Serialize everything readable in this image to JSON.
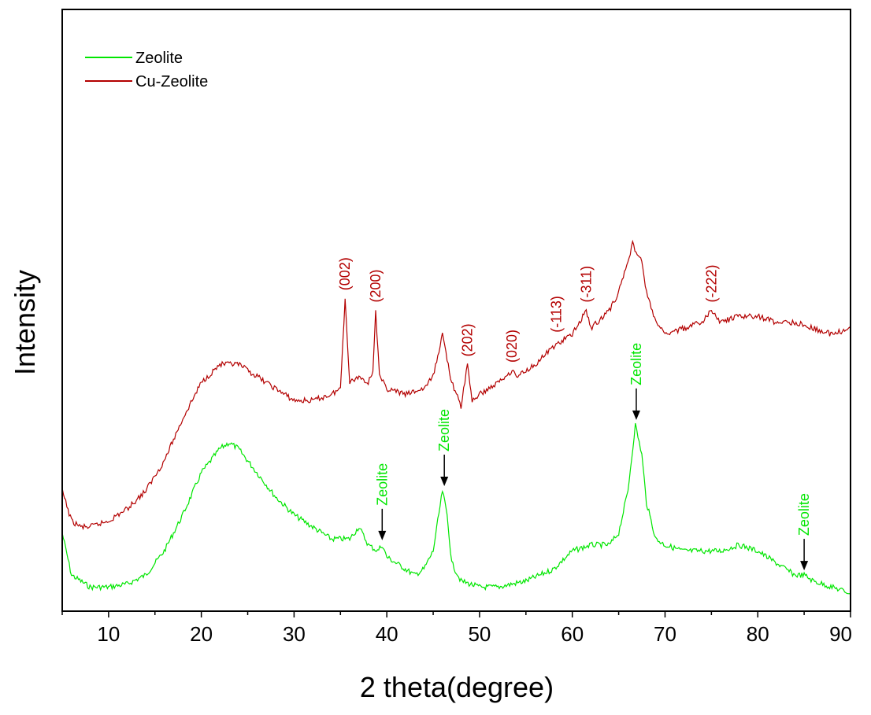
{
  "chart_data": {
    "type": "line",
    "xlabel": "2 theta(degree)",
    "ylabel": "Intensity",
    "xlim": [
      5,
      90
    ],
    "ylim": [
      0,
      1
    ],
    "x_ticks": [
      "10",
      "20",
      "30",
      "40",
      "50",
      "60",
      "70",
      "80",
      "90"
    ],
    "y_ticks_shown": false,
    "grid": false,
    "legend_position": "top-left",
    "series": [
      {
        "name": "Zeolite",
        "color": "#00e600",
        "points": [
          [
            5,
            0.13
          ],
          [
            6,
            0.06
          ],
          [
            7,
            0.05
          ],
          [
            8,
            0.04
          ],
          [
            10,
            0.04
          ],
          [
            12,
            0.045
          ],
          [
            14,
            0.06
          ],
          [
            16,
            0.1
          ],
          [
            18,
            0.16
          ],
          [
            20,
            0.23
          ],
          [
            22,
            0.27
          ],
          [
            23,
            0.28
          ],
          [
            24,
            0.27
          ],
          [
            26,
            0.23
          ],
          [
            28,
            0.19
          ],
          [
            30,
            0.16
          ],
          [
            32,
            0.14
          ],
          [
            34,
            0.12
          ],
          [
            36,
            0.12
          ],
          [
            37,
            0.14
          ],
          [
            38,
            0.11
          ],
          [
            39,
            0.1
          ],
          [
            39.5,
            0.11
          ],
          [
            40,
            0.09
          ],
          [
            42,
            0.07
          ],
          [
            43,
            0.06
          ],
          [
            44,
            0.07
          ],
          [
            45,
            0.1
          ],
          [
            46,
            0.2
          ],
          [
            46.5,
            0.16
          ],
          [
            47,
            0.08
          ],
          [
            48,
            0.05
          ],
          [
            50,
            0.04
          ],
          [
            52,
            0.04
          ],
          [
            55,
            0.05
          ],
          [
            58,
            0.07
          ],
          [
            60,
            0.1
          ],
          [
            62,
            0.11
          ],
          [
            64,
            0.11
          ],
          [
            65,
            0.13
          ],
          [
            66,
            0.2
          ],
          [
            66.8,
            0.31
          ],
          [
            67.5,
            0.26
          ],
          [
            68,
            0.18
          ],
          [
            69,
            0.12
          ],
          [
            70,
            0.11
          ],
          [
            72,
            0.1
          ],
          [
            74,
            0.1
          ],
          [
            76,
            0.1
          ],
          [
            78,
            0.11
          ],
          [
            80,
            0.1
          ],
          [
            82,
            0.08
          ],
          [
            84,
            0.06
          ],
          [
            85,
            0.06
          ],
          [
            86,
            0.05
          ],
          [
            88,
            0.04
          ],
          [
            90,
            0.03
          ]
        ]
      },
      {
        "name": "Cu-Zeolite",
        "color": "#b30000",
        "points": [
          [
            5,
            0.2
          ],
          [
            6,
            0.15
          ],
          [
            7,
            0.14
          ],
          [
            8,
            0.14
          ],
          [
            10,
            0.15
          ],
          [
            12,
            0.17
          ],
          [
            14,
            0.2
          ],
          [
            16,
            0.25
          ],
          [
            18,
            0.32
          ],
          [
            20,
            0.38
          ],
          [
            22,
            0.41
          ],
          [
            24,
            0.41
          ],
          [
            26,
            0.39
          ],
          [
            28,
            0.37
          ],
          [
            30,
            0.35
          ],
          [
            32,
            0.35
          ],
          [
            34,
            0.36
          ],
          [
            35,
            0.37
          ],
          [
            35.5,
            0.52
          ],
          [
            36,
            0.38
          ],
          [
            37,
            0.39
          ],
          [
            38,
            0.38
          ],
          [
            38.5,
            0.4
          ],
          [
            38.8,
            0.5
          ],
          [
            39.2,
            0.39
          ],
          [
            40,
            0.37
          ],
          [
            42,
            0.36
          ],
          [
            44,
            0.37
          ],
          [
            45,
            0.39
          ],
          [
            46,
            0.46
          ],
          [
            47,
            0.38
          ],
          [
            48,
            0.34
          ],
          [
            48.7,
            0.41
          ],
          [
            49.2,
            0.35
          ],
          [
            50,
            0.36
          ],
          [
            52,
            0.38
          ],
          [
            53.5,
            0.4
          ],
          [
            54,
            0.39
          ],
          [
            56,
            0.41
          ],
          [
            58,
            0.44
          ],
          [
            60,
            0.46
          ],
          [
            61.5,
            0.5
          ],
          [
            62,
            0.47
          ],
          [
            64,
            0.5
          ],
          [
            65,
            0.53
          ],
          [
            66.5,
            0.61
          ],
          [
            67.5,
            0.58
          ],
          [
            68,
            0.53
          ],
          [
            69,
            0.48
          ],
          [
            70,
            0.46
          ],
          [
            72,
            0.47
          ],
          [
            74,
            0.48
          ],
          [
            75,
            0.5
          ],
          [
            76,
            0.48
          ],
          [
            78,
            0.49
          ],
          [
            80,
            0.49
          ],
          [
            82,
            0.48
          ],
          [
            84,
            0.48
          ],
          [
            86,
            0.47
          ],
          [
            88,
            0.46
          ],
          [
            90,
            0.47
          ]
        ]
      }
    ],
    "peak_labels": [
      {
        "text": "(002)",
        "x": 35.5,
        "y": 0.52
      },
      {
        "text": "(200)",
        "x": 38.8,
        "y": 0.5
      },
      {
        "text": "(202)",
        "x": 48.7,
        "y": 0.41
      },
      {
        "text": "(020)",
        "x": 53.5,
        "y": 0.4
      },
      {
        "text": "(-113)",
        "x": 58.3,
        "y": 0.45
      },
      {
        "text": "(-311)",
        "x": 61.5,
        "y": 0.5
      },
      {
        "text": "(-222)",
        "x": 75,
        "y": 0.5
      }
    ],
    "zeolite_annotations": [
      {
        "text": "Zeolite",
        "x": 39.5,
        "y": 0.11
      },
      {
        "text": "Zeolite",
        "x": 46.2,
        "y": 0.2
      },
      {
        "text": "Zeolite",
        "x": 66.9,
        "y": 0.31
      },
      {
        "text": "Zeolite",
        "x": 85,
        "y": 0.06
      }
    ],
    "annotation_arrow_color": "#000000"
  }
}
